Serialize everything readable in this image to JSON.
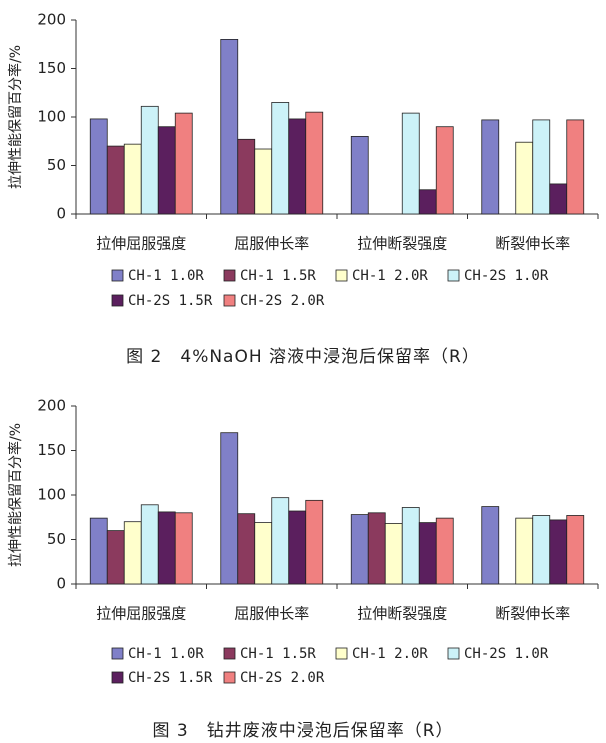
{
  "colors": [
    "#8080C8",
    "#8B3A5E",
    "#FFFFCC",
    "#CCF2F8",
    "#5B1F5E",
    "#F08080"
  ],
  "chart_data": [
    {
      "type": "bar",
      "caption_number": "图 2",
      "caption_text": "4%NaOH 溶液中浸泡后保留率（R）",
      "ylabel": "拉伸性能保留百分率/%",
      "xlabel": "",
      "ylim": [
        0,
        200
      ],
      "yticks": [
        0,
        50,
        100,
        150,
        200
      ],
      "categories": [
        "拉伸屈服强度",
        "屈服伸长率",
        "拉伸断裂强度",
        "断裂伸长率"
      ],
      "series": [
        {
          "name": "CH-1 1.0R",
          "values": [
            98,
            180,
            80,
            97
          ]
        },
        {
          "name": "CH-1 1.5R",
          "values": [
            70,
            77,
            null,
            null
          ]
        },
        {
          "name": "CH-1 2.0R",
          "values": [
            72,
            67,
            null,
            74
          ]
        },
        {
          "name": "CH-2S 1.0R",
          "values": [
            111,
            115,
            104,
            97
          ]
        },
        {
          "name": "CH-2S 1.5R",
          "values": [
            90,
            98,
            25,
            31
          ]
        },
        {
          "name": "CH-2S 2.0R",
          "values": [
            104,
            105,
            90,
            97
          ]
        }
      ],
      "grid": false,
      "legend_position": "bottom"
    },
    {
      "type": "bar",
      "caption_number": "图 3",
      "caption_text": "钻井废液中浸泡后保留率（R）",
      "ylabel": "拉伸性能保留百分率/%",
      "xlabel": "",
      "ylim": [
        0,
        200
      ],
      "yticks": [
        0,
        50,
        100,
        150,
        200
      ],
      "categories": [
        "拉伸屈服强度",
        "屈服伸长率",
        "拉伸断裂强度",
        "断裂伸长率"
      ],
      "series": [
        {
          "name": "CH-1 1.0R",
          "values": [
            74,
            170,
            78,
            87
          ]
        },
        {
          "name": "CH-1 1.5R",
          "values": [
            60,
            79,
            80,
            null
          ]
        },
        {
          "name": "CH-1 2.0R",
          "values": [
            70,
            69,
            68,
            74
          ]
        },
        {
          "name": "CH-2S 1.0R",
          "values": [
            89,
            97,
            86,
            77
          ]
        },
        {
          "name": "CH-2S 1.5R",
          "values": [
            81,
            82,
            69,
            72
          ]
        },
        {
          "name": "CH-2S 2.0R",
          "values": [
            80,
            94,
            74,
            77
          ]
        }
      ],
      "grid": false,
      "legend_position": "bottom"
    }
  ]
}
